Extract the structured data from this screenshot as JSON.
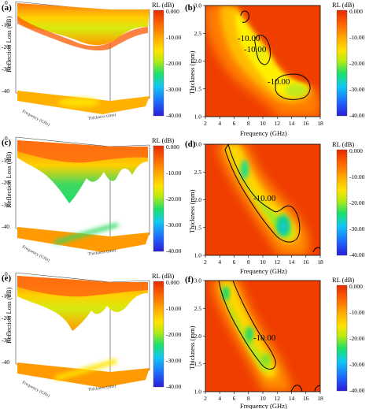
{
  "colors": {
    "scale": [
      "#2a1bd6",
      "#1e6fff",
      "#12c8f0",
      "#1ee06a",
      "#b8ea12",
      "#ffe100",
      "#ffae00",
      "#ff6a00",
      "#e52b00"
    ],
    "contour": "#000000"
  },
  "labels": {
    "panel_a": "(a)",
    "panel_b": "(b)",
    "panel_c": "(c)",
    "panel_d": "(d)",
    "panel_e": "(e)",
    "panel_f": "(f)",
    "rl_db": "RL (dB)",
    "reflection_loss_db": "Reflection Loss (dB)",
    "thickness_mm": "Thickness (mm)",
    "frequency_ghz": "Frequency (GHz)",
    "frequency_3d": "Frequency (GHz)",
    "thickness_3d": "Thickness (mm)"
  },
  "chart_data": [
    {
      "panel": "a",
      "type": "surface3d",
      "zlabel": "Reflection Loss (dB)",
      "z_ticks": [
        "0",
        "-10",
        "-20",
        "-30",
        "-40"
      ],
      "colorbar": {
        "title": "RL (dB)",
        "ticks": [
          "0.000",
          "-10.00",
          "-20.00",
          "-30.00",
          "-40.00"
        ],
        "range": [
          -40,
          0
        ]
      }
    },
    {
      "panel": "b",
      "type": "heatmap",
      "xlabel": "Frequency (GHz)",
      "ylabel": "Thickness (mm)",
      "xlim": [
        2,
        18
      ],
      "ylim": [
        1.0,
        3.0
      ],
      "x_ticks": [
        "2",
        "4",
        "6",
        "8",
        "10",
        "12",
        "14",
        "16",
        "18"
      ],
      "y_ticks": [
        "1.0",
        "1.5",
        "2.0",
        "2.5",
        "3.0"
      ],
      "contour_labels": [
        "-10.00",
        "-10.00",
        "-10.00"
      ],
      "minima": [
        {
          "freq": 13.5,
          "thickness": 1.5,
          "rl": -17
        },
        {
          "freq": 10.5,
          "thickness": 2.1,
          "rl": -12
        }
      ],
      "colorbar": {
        "title": "RL (dB)",
        "ticks": [
          "0.000",
          "-10.00",
          "-20.00",
          "-30.00",
          "-40.00"
        ],
        "range": [
          -40,
          0
        ]
      }
    },
    {
      "panel": "c",
      "type": "surface3d",
      "zlabel": "Reflection Loss (dB)",
      "z_ticks": [
        "0",
        "-10",
        "-20",
        "-30",
        "-40"
      ],
      "colorbar": {
        "title": "RL (dB)",
        "ticks": [
          "0.000",
          "-10.00",
          "-20.00",
          "-30.00",
          "-40.00"
        ],
        "range": [
          -40,
          0
        ]
      }
    },
    {
      "panel": "d",
      "type": "heatmap",
      "xlabel": "Frequency (GHz)",
      "ylabel": "Thickness (mm)",
      "xlim": [
        2,
        18
      ],
      "ylim": [
        1.0,
        3.0
      ],
      "x_ticks": [
        "2",
        "4",
        "6",
        "8",
        "10",
        "12",
        "14",
        "16",
        "18"
      ],
      "y_ticks": [
        "1.0",
        "1.5",
        "2.0",
        "2.5",
        "3.0"
      ],
      "contour_labels": [
        "-10.00"
      ],
      "minima": [
        {
          "freq": 13.0,
          "thickness": 1.5,
          "rl": -34
        },
        {
          "freq": 7.5,
          "thickness": 2.5,
          "rl": -28
        }
      ],
      "colorbar": {
        "title": "RL (dB)",
        "ticks": [
          "0.000",
          "-10.00",
          "-20.00",
          "-30.00",
          "-40.00"
        ],
        "range": [
          -40,
          0
        ]
      }
    },
    {
      "panel": "e",
      "type": "surface3d",
      "zlabel": "Reflection Loss (dB)",
      "z_ticks": [
        "0",
        "-10",
        "-20",
        "-30",
        "-40"
      ],
      "colorbar": {
        "title": "RL (dB)",
        "ticks": [
          "0.000",
          "-10.00",
          "-20.00",
          "-30.00",
          "-40.00"
        ],
        "range": [
          -40,
          0
        ]
      }
    },
    {
      "panel": "f",
      "type": "heatmap",
      "xlabel": "Frequency (GHz)",
      "ylabel": "Thickness (mm)",
      "xlim": [
        2,
        18
      ],
      "ylim": [
        1.0,
        3.0
      ],
      "x_ticks": [
        "2",
        "4",
        "6",
        "8",
        "10",
        "12",
        "14",
        "16",
        "18"
      ],
      "y_ticks": [
        "1.0",
        "1.5",
        "2.0",
        "2.5",
        "3.0"
      ],
      "contour_labels": [
        "-10.00"
      ],
      "minima": [
        {
          "freq": 8.0,
          "thickness": 2.0,
          "rl": -22
        },
        {
          "freq": 10.5,
          "thickness": 1.5,
          "rl": -20
        }
      ],
      "colorbar": {
        "title": "RL (dB)",
        "ticks": [
          "0.000",
          "-10.00",
          "-20.00",
          "-30.00",
          "-40.00"
        ],
        "range": [
          -40,
          0
        ]
      }
    }
  ]
}
